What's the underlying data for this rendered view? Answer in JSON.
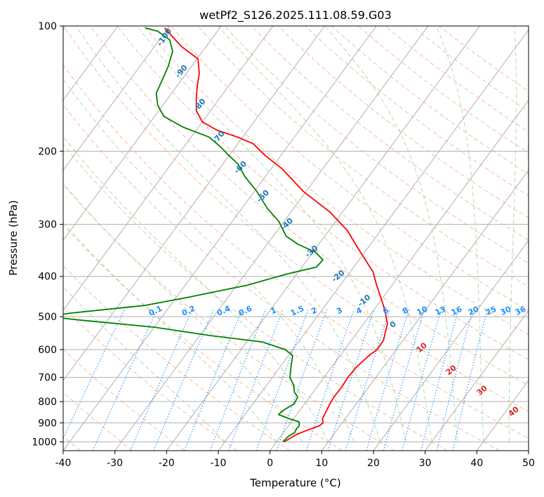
{
  "chart_data": {
    "type": "line",
    "title": "wetPf2_S126.2025.111.08.59.G03",
    "xlabel": "Temperature (°C)",
    "ylabel": "Pressure (hPa)",
    "xlim": [
      -40,
      50
    ],
    "ylim": [
      1050,
      100
    ],
    "y_scale": "log",
    "grid": true,
    "x_ticks": [
      -40,
      -30,
      -20,
      -10,
      0,
      10,
      20,
      30,
      40,
      50
    ],
    "y_ticks": [
      100,
      200,
      300,
      400,
      500,
      600,
      700,
      800,
      900,
      1000
    ],
    "skew": true,
    "series": [
      {
        "name": "",
        "color": "#ff0000",
        "points": [
          [
            1.5,
            1000
          ],
          [
            2.8,
            960
          ],
          [
            4.8,
            930
          ],
          [
            6.0,
            915
          ],
          [
            6.3,
            900
          ],
          [
            5.6,
            880
          ],
          [
            5.3,
            850
          ],
          [
            4.9,
            810
          ],
          [
            4.7,
            780
          ],
          [
            4.8,
            740
          ],
          [
            4.6,
            700
          ],
          [
            4.8,
            660
          ],
          [
            5.6,
            620
          ],
          [
            6.3,
            600
          ],
          [
            6.2,
            570
          ],
          [
            4.6,
            520
          ],
          [
            2.0,
            480
          ],
          [
            -0.4,
            450
          ],
          [
            -3.0,
            420
          ],
          [
            -5.6,
            390
          ],
          [
            -10.8,
            350
          ],
          [
            -16.5,
            310
          ],
          [
            -22.5,
            280
          ],
          [
            -30.5,
            250
          ],
          [
            -38.0,
            220
          ],
          [
            -43.0,
            205
          ],
          [
            -47.0,
            192
          ],
          [
            -51.0,
            185
          ],
          [
            -56.0,
            178
          ],
          [
            -60.0,
            170
          ],
          [
            -62.7,
            160
          ],
          [
            -64.4,
            150
          ],
          [
            -66.0,
            140
          ],
          [
            -67.5,
            130
          ],
          [
            -69.8,
            120
          ],
          [
            -74.8,
            112
          ],
          [
            -78.5,
            105
          ],
          [
            -80.7,
            101
          ]
        ]
      },
      {
        "name": "",
        "color": "#008000",
        "points": [
          [
            1.2,
            1000
          ],
          [
            1.5,
            970
          ],
          [
            2.2,
            950
          ],
          [
            2.0,
            930
          ],
          [
            2.1,
            915
          ],
          [
            1.5,
            895
          ],
          [
            -0.8,
            880
          ],
          [
            -3.5,
            860
          ],
          [
            -3.2,
            840
          ],
          [
            -2.0,
            810
          ],
          [
            -2.3,
            780
          ],
          [
            -3.6,
            760
          ],
          [
            -4.8,
            730
          ],
          [
            -6.6,
            700
          ],
          [
            -7.9,
            660
          ],
          [
            -9.2,
            620
          ],
          [
            -11.5,
            600
          ],
          [
            -17.0,
            575
          ],
          [
            -28.0,
            555
          ],
          [
            -40.0,
            530
          ],
          [
            -55.0,
            510
          ],
          [
            -62.0,
            500
          ],
          [
            -58.0,
            490
          ],
          [
            -45.0,
            470
          ],
          [
            -38.0,
            450
          ],
          [
            -28.0,
            420
          ],
          [
            -22.0,
            395
          ],
          [
            -17.2,
            380
          ],
          [
            -17.0,
            365
          ],
          [
            -19.5,
            350
          ],
          [
            -24.0,
            335
          ],
          [
            -27.5,
            320
          ],
          [
            -31.0,
            295
          ],
          [
            -35.0,
            275
          ],
          [
            -39.5,
            250
          ],
          [
            -44.0,
            230
          ],
          [
            -47.0,
            215
          ],
          [
            -50.0,
            205
          ],
          [
            -53.0,
            195
          ],
          [
            -56.5,
            185
          ],
          [
            -63.0,
            175
          ],
          [
            -68.2,
            165
          ],
          [
            -71.0,
            155
          ],
          [
            -73.0,
            145
          ],
          [
            -73.7,
            135
          ],
          [
            -74.5,
            125
          ],
          [
            -75.8,
            115
          ],
          [
            -78.0,
            108
          ],
          [
            -81.5,
            103
          ],
          [
            -84.5,
            101
          ]
        ]
      }
    ],
    "dry_adiabat_labels": [
      "-100",
      "-90",
      "-80",
      "-70",
      "-60",
      "-50",
      "-40",
      "-30",
      "-20",
      "-10",
      "0",
      "10",
      "20",
      "30",
      "40"
    ],
    "moist_adiabat_labels": [
      "0",
      "10",
      "20",
      "30",
      "40"
    ],
    "mixing_ratio_labels": [
      "0.1",
      "0.2",
      "0.4",
      "0.6",
      "1",
      "1.5",
      "2",
      "3",
      "4",
      "6",
      "8",
      "10",
      "13",
      "16",
      "20",
      "25",
      "30",
      "36"
    ]
  }
}
